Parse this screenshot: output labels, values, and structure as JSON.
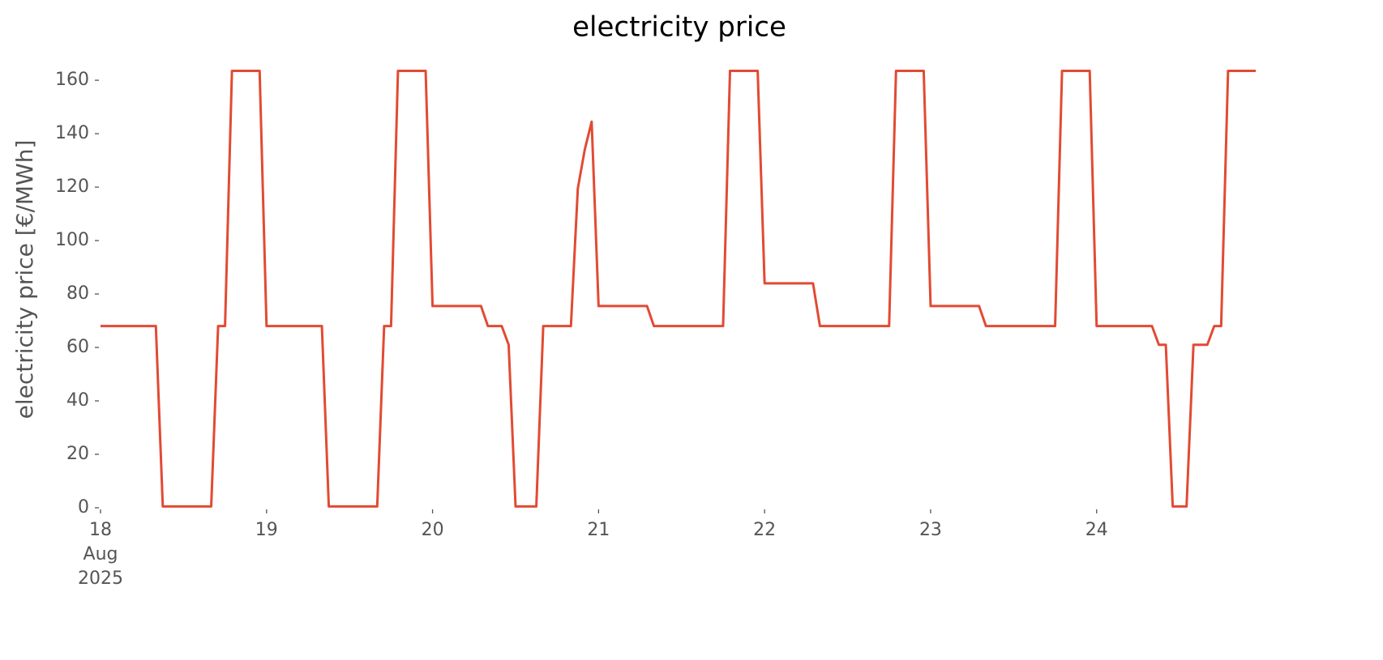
{
  "chart_data": {
    "type": "line",
    "title": "electricity price",
    "ylabel": "electricity price [€/MWh]",
    "series": [
      {
        "color": "#e24a33",
        "values": [
          68,
          68,
          68,
          68,
          68,
          68,
          68,
          68,
          68,
          0.5,
          0.5,
          0.5,
          0.5,
          0.5,
          0.5,
          0.5,
          0.5,
          68,
          68,
          163.5,
          163.5,
          163.5,
          163.5,
          163.5,
          68,
          68,
          68,
          68,
          68,
          68,
          68,
          68,
          68,
          0.5,
          0.5,
          0.5,
          0.5,
          0.5,
          0.5,
          0.5,
          0.5,
          68,
          68,
          163.5,
          163.5,
          163.5,
          163.5,
          163.5,
          75.5,
          75.5,
          75.5,
          75.5,
          75.5,
          75.5,
          75.5,
          75.5,
          68,
          68,
          68,
          61,
          0.5,
          0.5,
          0.5,
          0.5,
          68,
          68,
          68,
          68,
          68,
          119.5,
          134,
          144.5,
          75.5,
          75.5,
          75.5,
          75.5,
          75.5,
          75.5,
          75.5,
          75.5,
          68,
          68,
          68,
          68,
          68,
          68,
          68,
          68,
          68,
          68,
          68,
          163.5,
          163.5,
          163.5,
          163.5,
          163.5,
          84,
          84,
          84,
          84,
          84,
          84,
          84,
          84,
          68,
          68,
          68,
          68,
          68,
          68,
          68,
          68,
          68,
          68,
          68,
          163.5,
          163.5,
          163.5,
          163.5,
          163.5,
          75.5,
          75.5,
          75.5,
          75.5,
          75.5,
          75.5,
          75.5,
          75.5,
          68,
          68,
          68,
          68,
          68,
          68,
          68,
          68,
          68,
          68,
          68,
          163.5,
          163.5,
          163.5,
          163.5,
          163.5,
          68,
          68,
          68,
          68,
          68,
          68,
          68,
          68,
          68,
          61,
          61,
          0.5,
          0.5,
          0.5,
          61,
          61,
          61,
          68,
          68,
          163.5,
          163.5,
          163.5,
          163.5,
          163.5
        ]
      }
    ],
    "xlim": [
      0,
      167
    ],
    "xticks": [
      {
        "value": 0,
        "label": [
          "18",
          "Aug",
          "2025"
        ]
      },
      {
        "value": 24,
        "label": "19"
      },
      {
        "value": 48,
        "label": "20"
      },
      {
        "value": 72,
        "label": "21"
      },
      {
        "value": 96,
        "label": "22"
      },
      {
        "value": 120,
        "label": "23"
      },
      {
        "value": 144,
        "label": "24"
      }
    ],
    "ylim": [
      0,
      167
    ],
    "yticks": [
      0,
      20,
      40,
      60,
      80,
      100,
      120,
      140,
      160
    ]
  }
}
